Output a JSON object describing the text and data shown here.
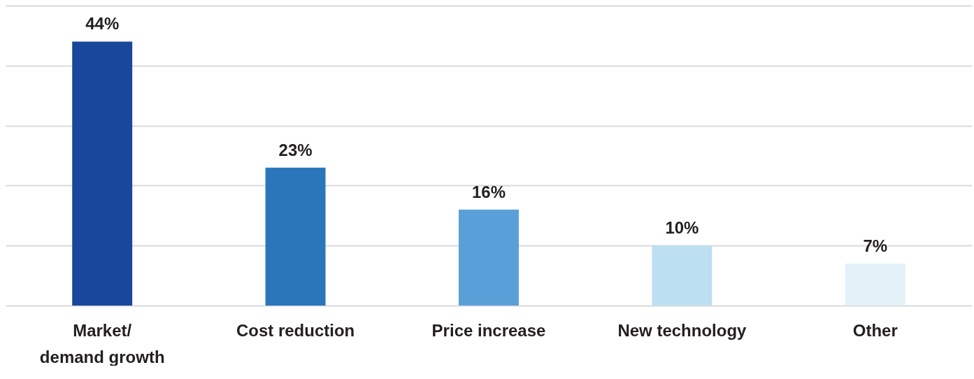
{
  "chart_data": {
    "type": "bar",
    "categories": [
      "Market/\ndemand growth",
      "Cost reduction",
      "Price increase",
      "New technology",
      "Other"
    ],
    "values": [
      44,
      23,
      16,
      10,
      7
    ],
    "colors": [
      "#19479c",
      "#2a76bb",
      "#5aa0d8",
      "#bddff2",
      "#e3f1f9"
    ],
    "value_labels": [
      "44%",
      "23%",
      "16%",
      "10%",
      "7%"
    ],
    "ylim": [
      0,
      50
    ],
    "yticks": [
      {
        "value": 0,
        "label": null
      },
      {
        "value": 10,
        "label": null
      },
      {
        "value": 20,
        "label": null
      },
      {
        "value": 30,
        "label": null
      },
      {
        "value": 40,
        "label": null
      },
      {
        "value": 50,
        "label": null
      }
    ],
    "grid": "y",
    "tick_labels": "x"
  }
}
